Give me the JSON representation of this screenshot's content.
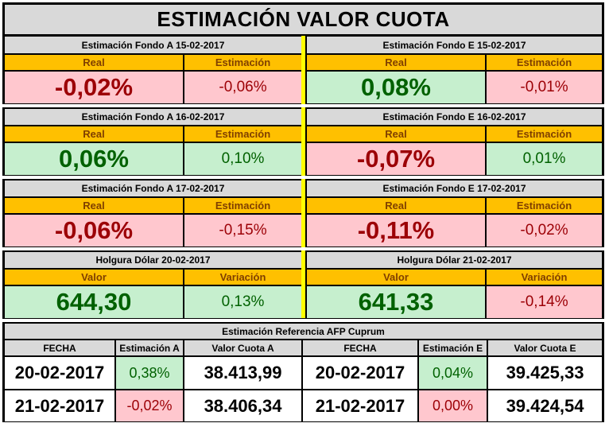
{
  "title": "ESTIMACIÓN VALOR CUOTA",
  "blocks": [
    {
      "left": {
        "header": "Estimación Fondo A  15-02-2017",
        "col1": "Real",
        "col2": "Estimación",
        "val1": "-0,02%",
        "val2": "-0,06%",
        "state1": "red",
        "state2": "red"
      },
      "right": {
        "header": "Estimación Fondo E  15-02-2017",
        "col1": "Real",
        "col2": "Estimación",
        "val1": "0,08%",
        "val2": "-0,01%",
        "state1": "green",
        "state2": "red"
      }
    },
    {
      "left": {
        "header": "Estimación Fondo A  16-02-2017",
        "col1": "Real",
        "col2": "Estimación",
        "val1": "0,06%",
        "val2": "0,10%",
        "state1": "green",
        "state2": "green"
      },
      "right": {
        "header": "Estimación Fondo E  16-02-2017",
        "col1": "Real",
        "col2": "Estimación",
        "val1": "-0,07%",
        "val2": "0,01%",
        "state1": "red",
        "state2": "green"
      }
    },
    {
      "left": {
        "header": "Estimación Fondo A  17-02-2017",
        "col1": "Real",
        "col2": "Estimación",
        "val1": "-0,06%",
        "val2": "-0,15%",
        "state1": "red",
        "state2": "red"
      },
      "right": {
        "header": "Estimación Fondo E  17-02-2017",
        "col1": "Real",
        "col2": "Estimación",
        "val1": "-0,11%",
        "val2": "-0,02%",
        "state1": "red",
        "state2": "red"
      }
    },
    {
      "left": {
        "header": "Holgura Dólar  20-02-2017",
        "col1": "Valor",
        "col2": "Variación",
        "val1": "644,30",
        "val2": "0,13%",
        "state1": "green",
        "state2": "green"
      },
      "right": {
        "header": "Holgura Dólar  21-02-2017",
        "col1": "Valor",
        "col2": "Variación",
        "val1": "641,33",
        "val2": "-0,14%",
        "state1": "green",
        "state2": "red"
      }
    }
  ],
  "reference": {
    "header": "Estimación Referencia AFP Cuprum",
    "columns": [
      "FECHA",
      "Estimación A",
      "Valor Cuota A",
      "FECHA",
      "Estimación E",
      "Valor Cuota E"
    ],
    "rows": [
      {
        "fecha_a": "20-02-2017",
        "est_a": "0,38%",
        "cuota_a": "38.413,99",
        "fecha_e": "20-02-2017",
        "est_e": "0,04%",
        "cuota_e": "39.425,33",
        "state_a": "green",
        "state_e": "green"
      },
      {
        "fecha_a": "21-02-2017",
        "est_a": "-0,02%",
        "cuota_a": "38.406,34",
        "fecha_e": "21-02-2017",
        "est_e": "0,00%",
        "cuota_e": "39.424,54",
        "state_a": "red",
        "state_e": "red"
      }
    ]
  },
  "colors": {
    "header_gray": "#d9d9d9",
    "sub_orange": "#ffc000",
    "neg_bg": "#ffc7ce",
    "neg_text": "#9c0006",
    "pos_bg": "#c6efce",
    "pos_text": "#006100",
    "separator": "#ffff00"
  }
}
